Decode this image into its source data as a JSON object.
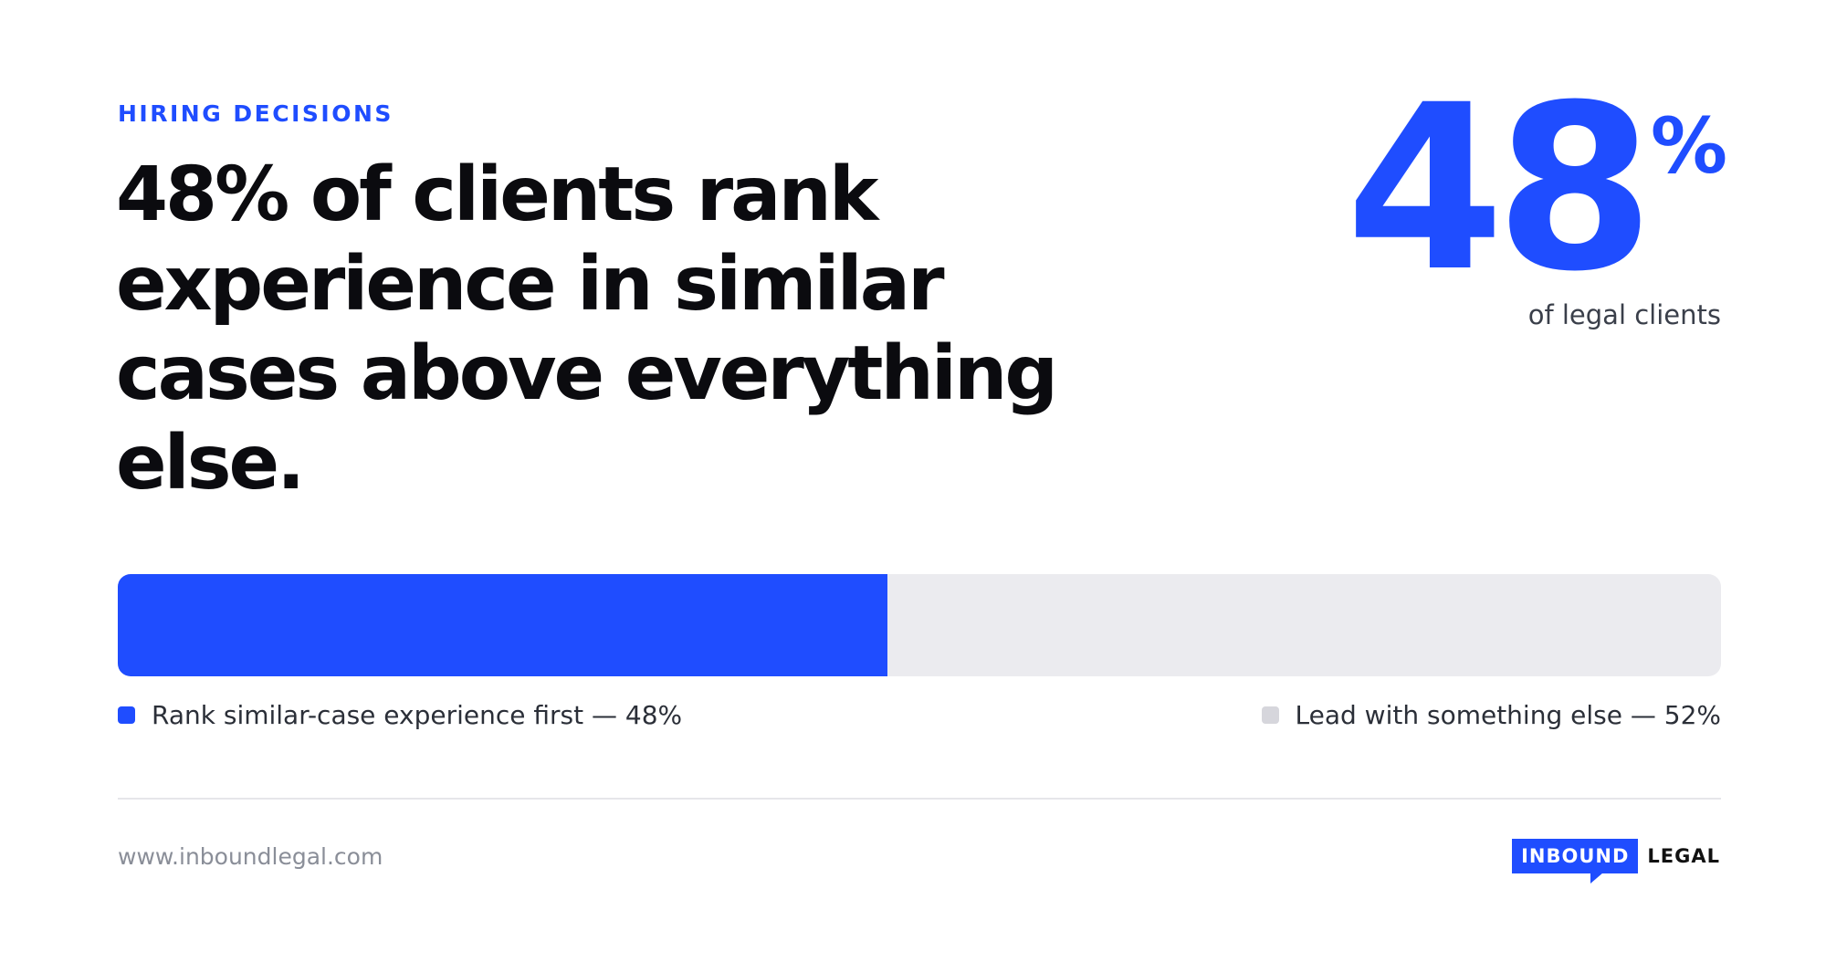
{
  "eyebrow": "HIRING DECISIONS",
  "headline": "48% of clients rank experience in similar cases above everything else.",
  "stat": {
    "number": "48",
    "suffix": "%",
    "caption": "of legal clients"
  },
  "progress": {
    "fill_fraction": 0.48,
    "fill_color": "#1f4dff",
    "track_color": "#ebebef"
  },
  "legend": [
    {
      "label": "Rank similar-case experience first — 48%",
      "color": "#1f4dff"
    },
    {
      "label": "Lead with something else — 52%",
      "color": "#d6d6dc"
    }
  ],
  "footer": {
    "website": "www.inboundlegal.com",
    "logo_box_text": "INBOUND",
    "logo_word": "LEGAL"
  },
  "colors": {
    "accent": "#1f4dff"
  }
}
